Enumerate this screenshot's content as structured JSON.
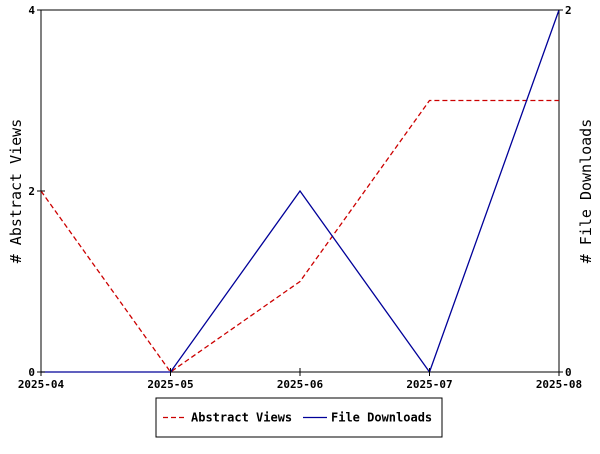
{
  "chart_data": {
    "type": "line",
    "categories": [
      "2025-04",
      "2025-05",
      "2025-06",
      "2025-07",
      "2025-08"
    ],
    "series": [
      {
        "name": "Abstract Views",
        "axis": "left",
        "values": [
          2,
          0,
          1,
          3,
          3
        ],
        "color": "#cc0000",
        "dash": "dashed"
      },
      {
        "name": "File Downloads",
        "axis": "right",
        "values": [
          0,
          0,
          1,
          0,
          2
        ],
        "color": "#000099",
        "dash": "solid"
      }
    ],
    "ylabel": "# Abstract Views",
    "y2label": "# File Downloads",
    "ylim": [
      0,
      4
    ],
    "y2lim": [
      0,
      2
    ],
    "yticks": [
      "0",
      "2",
      "4"
    ],
    "y2ticks": [
      "0",
      "2"
    ],
    "grid": false,
    "legend_position": "bottom-center"
  }
}
